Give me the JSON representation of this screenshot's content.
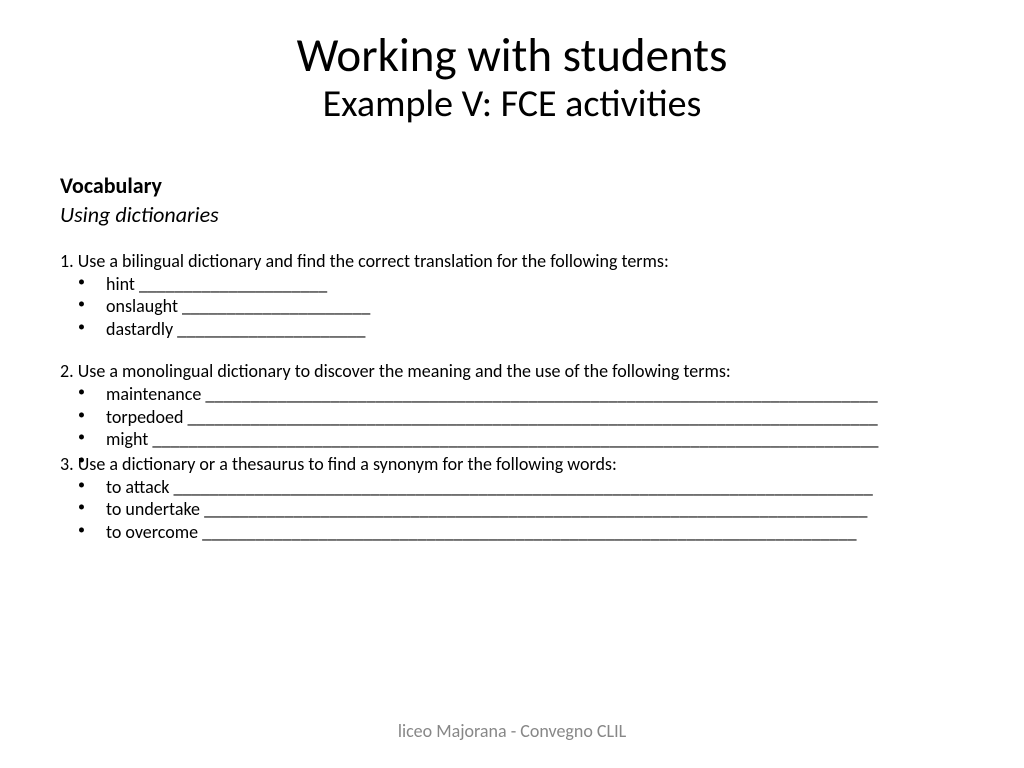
{
  "title": {
    "main": "Working with students",
    "sub": "Example V: FCE activities"
  },
  "section": {
    "heading": "Vocabulary",
    "subheading": "Using dictionaries"
  },
  "tasks": {
    "t1": {
      "prompt": "1. Use a bilingual dictionary and find the correct translation for the following terms:",
      "items": [
        "hint _____________________",
        "onslaught _____________________",
        "dastardly  _____________________"
      ]
    },
    "t2": {
      "prompt": "2. Use a monolingual dictionary to discover the meaning and the use of the following terms:",
      "items": [
        "maintenance ___________________________________________________________________________",
        "torpedoed _____________________________________________________________________________",
        "might _________________________________________________________________________________",
        ""
      ]
    },
    "t3": {
      "prompt": "3. Use a dictionary or a thesaurus to find a synonym for the following words:",
      "items": [
        "to attack ______________________________________________________________________________",
        "to undertake  __________________________________________________________________________",
        "to overcome   _________________________________________________________________________"
      ]
    }
  },
  "footer": "liceo Majorana - Convegno CLIL",
  "colors": {
    "background": "#ffffff",
    "text": "#000000",
    "footer": "#878787"
  }
}
